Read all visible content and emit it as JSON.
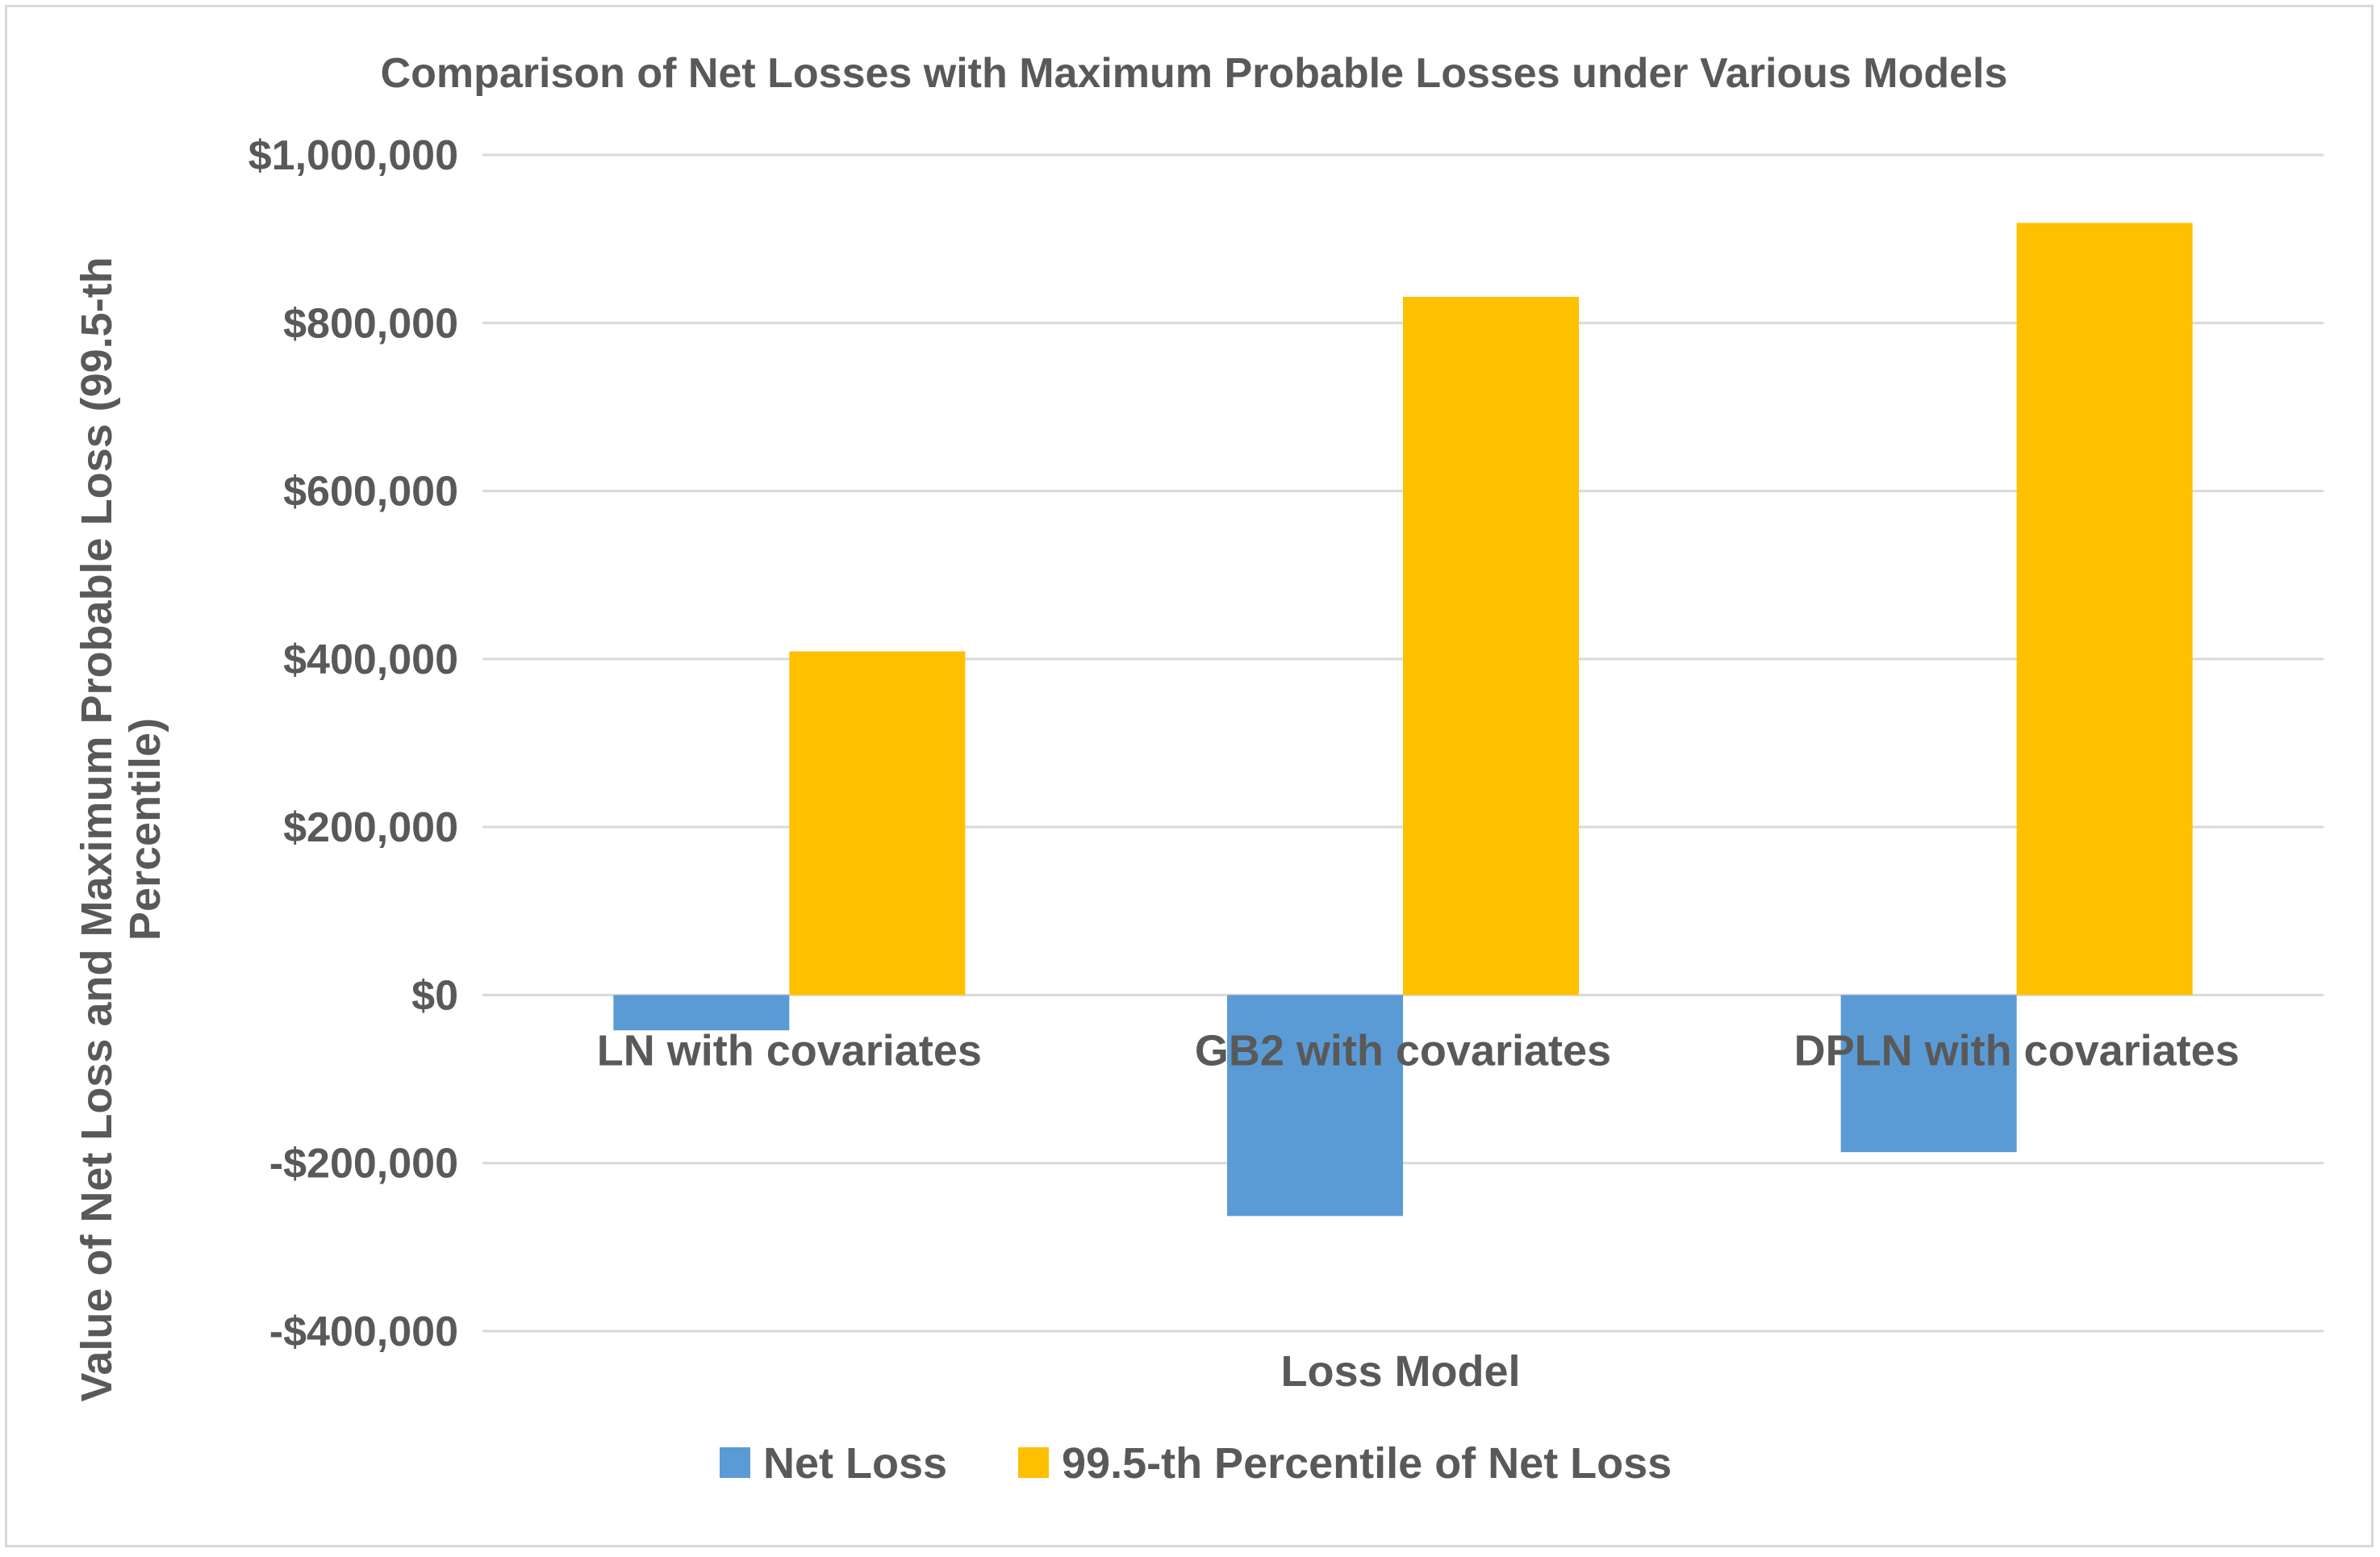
{
  "chart_data": {
    "type": "bar",
    "title": "Comparison of Net Losses with Maximum Probable Losses under Various Models",
    "xlabel": "Loss Model",
    "ylabel_lines": [
      "Value of Net Loss and Maximum Probable Loss (99.5-th",
      "Percentile)"
    ],
    "categories": [
      "LN with covariates",
      "GB2 with covariates",
      "DPLN with covariates"
    ],
    "series": [
      {
        "name": "Net Loss",
        "color": "#5b9bd5",
        "values": [
          -42000,
          -263000,
          -187000
        ]
      },
      {
        "name": "99.5-th Percentile of Net Loss",
        "color": "#ffc000",
        "values": [
          409000,
          831000,
          919000
        ]
      }
    ],
    "ylim": [
      -400000,
      1000000
    ],
    "yticks": [
      1000000,
      800000,
      600000,
      400000,
      200000,
      0,
      -200000,
      -400000
    ],
    "ytick_labels": [
      "$1,000,000",
      "$800,000",
      "$600,000",
      "$400,000",
      "$200,000",
      "$0",
      "-$200,000",
      "-$400,000"
    ],
    "grid": true,
    "legend_position": "bottom"
  }
}
